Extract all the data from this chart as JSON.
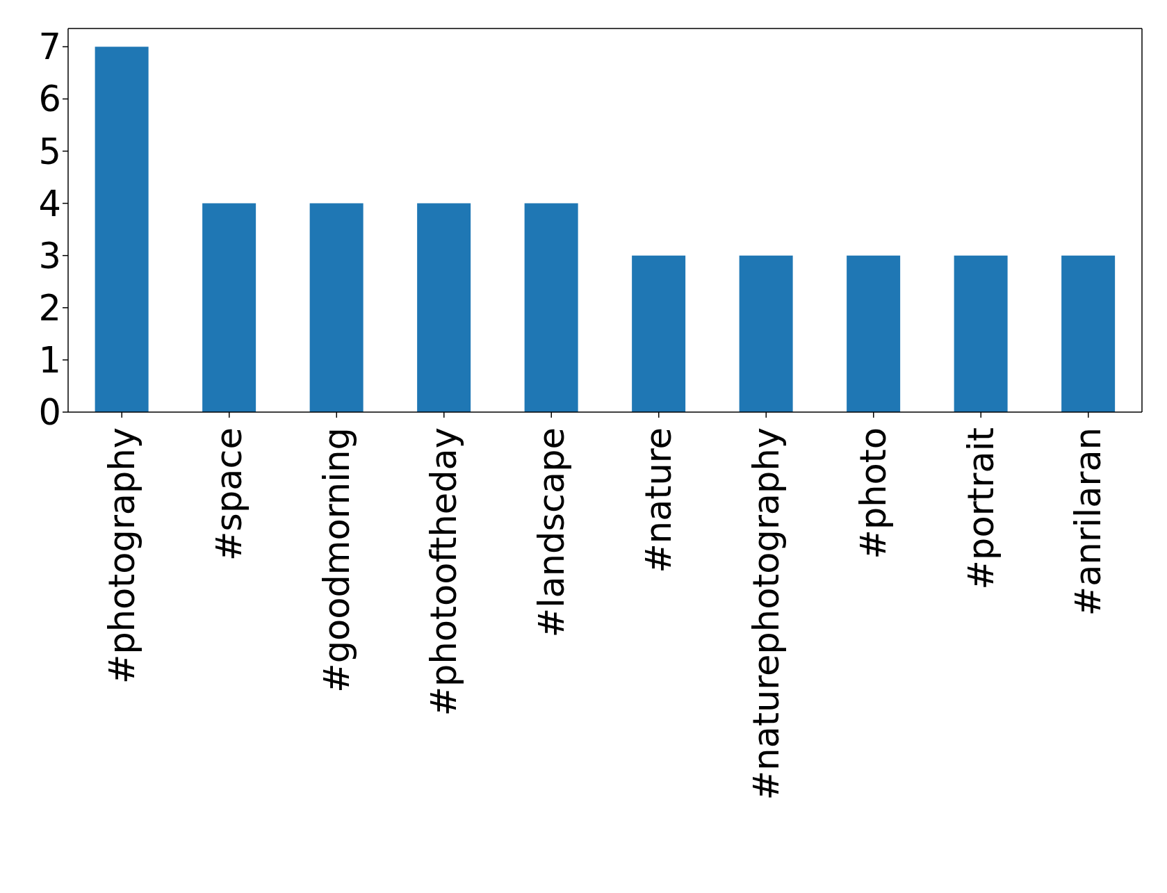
{
  "chart_data": {
    "type": "bar",
    "categories": [
      "#photography",
      "#space",
      "#goodmorning",
      "#photooftheday",
      "#landscape",
      "#nature",
      "#naturephotography",
      "#photo",
      "#portrait",
      "#anrilaran"
    ],
    "values": [
      7,
      4,
      4,
      4,
      4,
      3,
      3,
      3,
      3,
      3
    ],
    "color": "#1f77b4",
    "ylim": [
      0,
      7.35
    ],
    "yticks": [
      0,
      1,
      2,
      3,
      4,
      5,
      6,
      7
    ],
    "grid": false,
    "legend": false
  }
}
